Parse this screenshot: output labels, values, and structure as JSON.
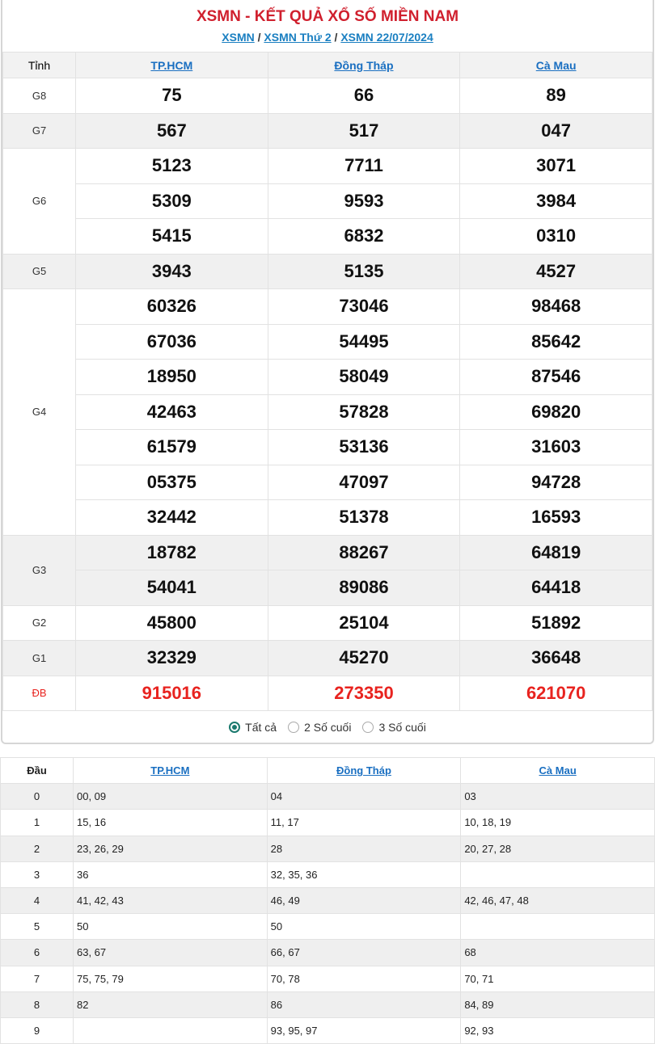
{
  "title": "XSMN - KẾT QUẢ XỔ SỐ MIỀN NAM",
  "breadcrumb": [
    "XSMN",
    "XSMN Thứ 2",
    "XSMN 22/07/2024"
  ],
  "header_label": "Tỉnh",
  "provinces": [
    "TP.HCM",
    "Đồng Tháp",
    "Cà Mau"
  ],
  "prizes": [
    {
      "label": "G8",
      "gray": false,
      "rows": [
        [
          "75",
          "66",
          "89"
        ]
      ]
    },
    {
      "label": "G7",
      "gray": true,
      "rows": [
        [
          "567",
          "517",
          "047"
        ]
      ]
    },
    {
      "label": "G6",
      "gray": false,
      "rows": [
        [
          "5123",
          "7711",
          "3071"
        ],
        [
          "5309",
          "9593",
          "3984"
        ],
        [
          "5415",
          "6832",
          "0310"
        ]
      ]
    },
    {
      "label": "G5",
      "gray": true,
      "rows": [
        [
          "3943",
          "5135",
          "4527"
        ]
      ]
    },
    {
      "label": "G4",
      "gray": false,
      "rows": [
        [
          "60326",
          "73046",
          "98468"
        ],
        [
          "67036",
          "54495",
          "85642"
        ],
        [
          "18950",
          "58049",
          "87546"
        ],
        [
          "42463",
          "57828",
          "69820"
        ],
        [
          "61579",
          "53136",
          "31603"
        ],
        [
          "05375",
          "47097",
          "94728"
        ],
        [
          "32442",
          "51378",
          "16593"
        ]
      ]
    },
    {
      "label": "G3",
      "gray": true,
      "rows": [
        [
          "18782",
          "88267",
          "64819"
        ],
        [
          "54041",
          "89086",
          "64418"
        ]
      ]
    },
    {
      "label": "G2",
      "gray": false,
      "rows": [
        [
          "45800",
          "25104",
          "51892"
        ]
      ]
    },
    {
      "label": "G1",
      "gray": true,
      "rows": [
        [
          "32329",
          "45270",
          "36648"
        ]
      ]
    },
    {
      "label": "ĐB",
      "gray": false,
      "special": true,
      "rows": [
        [
          "915016",
          "273350",
          "621070"
        ]
      ]
    }
  ],
  "filter": {
    "options": [
      "Tất cả",
      "2 Số cuối",
      "3 Số cuối"
    ],
    "selected": 0
  },
  "loto": {
    "header_label": "Đầu",
    "rows": [
      [
        "0",
        "00, 09",
        "04",
        "03"
      ],
      [
        "1",
        "15, 16",
        "11, 17",
        "10, 18, 19"
      ],
      [
        "2",
        "23, 26, 29",
        "28",
        "20, 27, 28"
      ],
      [
        "3",
        "36",
        "32, 35, 36",
        ""
      ],
      [
        "4",
        "41, 42, 43",
        "46, 49",
        "42, 46, 47, 48"
      ],
      [
        "5",
        "50",
        "50",
        ""
      ],
      [
        "6",
        "63, 67",
        "66, 67",
        "68"
      ],
      [
        "7",
        "75, 75, 79",
        "70, 78",
        "70, 71"
      ],
      [
        "8",
        "82",
        "86",
        "84, 89"
      ],
      [
        "9",
        "",
        "93, 95, 97",
        "92, 93"
      ]
    ]
  },
  "colors": {
    "title": "#d0202e",
    "link": "#1a7fc1",
    "special": "#e8231f",
    "radio": "#1b7a6e"
  }
}
